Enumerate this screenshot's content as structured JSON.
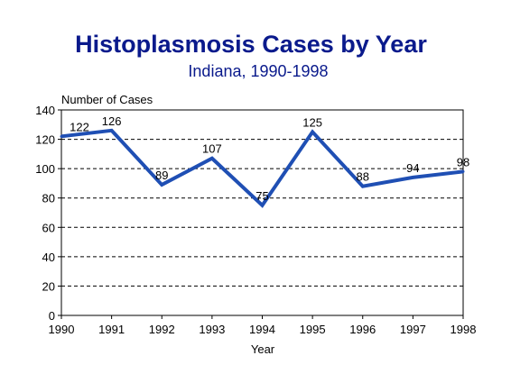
{
  "chart_data": {
    "type": "line",
    "title": "Histoplasmosis Cases by Year",
    "subtitle": "Indiana, 1990-1998",
    "xlabel": "Year",
    "ylabel": "Number of Cases",
    "x": [
      "1990",
      "1991",
      "1992",
      "1993",
      "1994",
      "1995",
      "1996",
      "1997",
      "1998"
    ],
    "series": [
      {
        "values": [
          122,
          126,
          89,
          107,
          75,
          125,
          88,
          94,
          98
        ]
      }
    ],
    "ylim": [
      0,
      140
    ],
    "yticks": [
      0,
      20,
      40,
      60,
      80,
      100,
      120,
      140
    ],
    "grid": "horizontal dashed",
    "colors": {
      "line": "#1f4fb4",
      "title": "#0a1a8c",
      "grid": "#000000"
    }
  }
}
